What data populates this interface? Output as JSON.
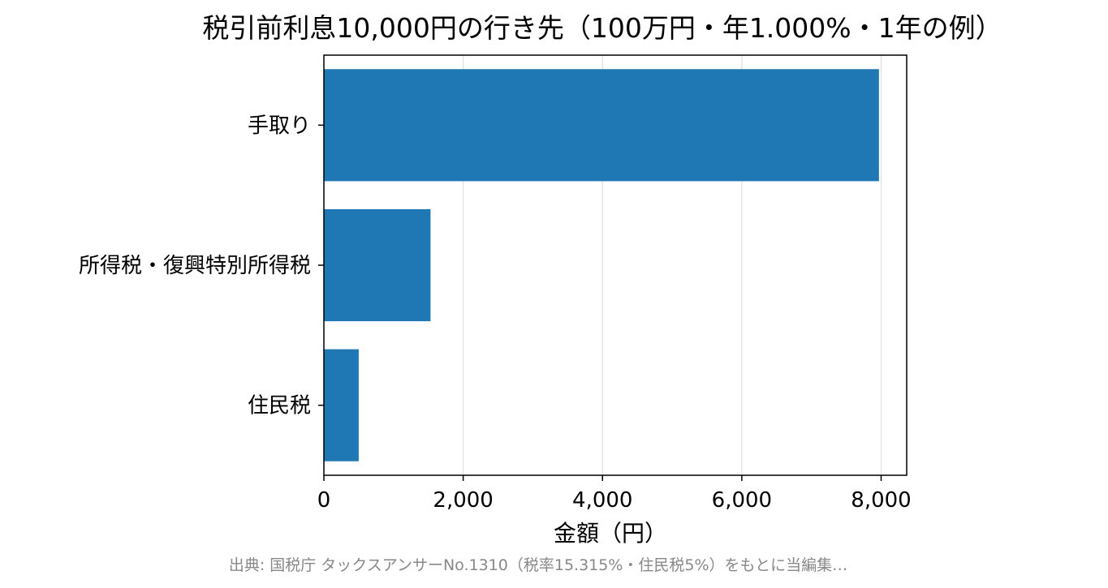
{
  "chart_data": {
    "type": "bar",
    "orientation": "horizontal",
    "title": "税引前利息10,000円の行き先（100万円・年1.000%・1年の例）",
    "xlabel": "金額（円）",
    "ylabel": "",
    "categories": [
      "手取り",
      "所得税・復興特別所得税",
      "住民税"
    ],
    "values": [
      7969,
      1531,
      500
    ],
    "xlim": [
      0,
      8367
    ],
    "xticks": [
      0,
      2000,
      4000,
      6000,
      8000
    ],
    "xtick_labels": [
      "0",
      "2,000",
      "4,000",
      "6,000",
      "8,000"
    ],
    "grid": "x",
    "bar_color": "#1f77b4"
  },
  "source_note": "出典: 国税庁 タックスアンサーNo.1310（税率15.315%・住民税5%）をもとに当編集…"
}
